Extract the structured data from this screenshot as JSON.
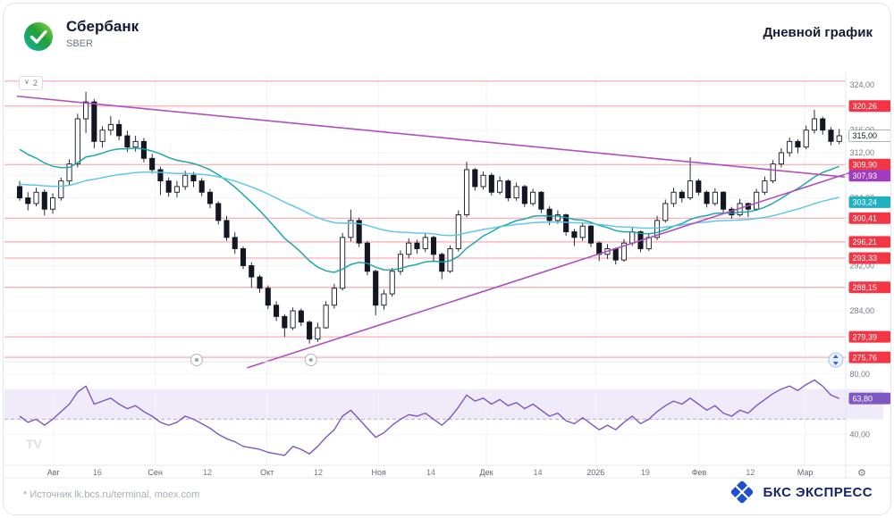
{
  "header": {
    "title": "Сбербанк",
    "ticker": "SBER",
    "right_title": "Дневной график"
  },
  "legend_chip": {
    "count": "2"
  },
  "footer": {
    "source": "*  Источник lk.bcs.ru/terminal, moex.com",
    "brand": "БКС ЭКСПРЕСС"
  },
  "chart_data": {
    "type": "candlestick",
    "title": "Сбербанк (SBER), дневной график",
    "price_axis": {
      "ylim": [
        274.2,
        325.6
      ],
      "grid_step": 4,
      "visible_grid_labels": [
        324,
        316,
        312,
        304,
        292,
        284
      ],
      "last_price": 315.0
    },
    "levels": {
      "color": "#f23645",
      "values": [
        324.68,
        320.26,
        309.9,
        300.41,
        296.21,
        293.33,
        288.15,
        279.39,
        275.76
      ],
      "labeled": [
        320.26,
        309.9,
        300.41,
        296.21,
        293.33,
        288.15,
        279.39,
        275.76
      ]
    },
    "trendlines": {
      "color": "#b04fc0",
      "current_label": 307.93,
      "label_color": "#a03cc0",
      "lines": [
        {
          "f1": 0.0,
          "p1": 322.0,
          "f2": 1.0,
          "p2": 307.7
        },
        {
          "f1": 0.278,
          "p1": 273.9,
          "f2": 1.005,
          "p2": 308.4
        }
      ]
    },
    "moving_averages": [
      {
        "period": 20,
        "init": 313.5,
        "color": "#12a3a8"
      },
      {
        "period": 60,
        "init": 306.5,
        "color": "#58c4e8",
        "current_label": 303.24,
        "label_color": "#1fb0c2"
      }
    ],
    "candles": {
      "up_color": "#ffffff",
      "down_color": "#131722",
      "border": "#131722",
      "ohlc": [
        [
          306,
          307,
          303.5,
          304
        ],
        [
          304,
          305,
          301.8,
          303
        ],
        [
          303,
          305.8,
          302.5,
          305
        ],
        [
          305,
          305.5,
          300.9,
          302
        ],
        [
          302,
          304.8,
          301.2,
          304
        ],
        [
          304,
          307.6,
          303.5,
          307
        ],
        [
          307,
          310.8,
          306.2,
          310
        ],
        [
          310,
          318.9,
          309.4,
          318
        ],
        [
          318,
          322.8,
          315.5,
          321
        ],
        [
          321,
          321.5,
          312.8,
          314
        ],
        [
          314,
          316.7,
          312.9,
          316
        ],
        [
          316,
          318.5,
          315.1,
          317
        ],
        [
          317,
          317.8,
          314.2,
          315
        ],
        [
          315,
          315.9,
          312.1,
          313
        ],
        [
          313,
          315,
          312.2,
          314
        ],
        [
          314,
          314.6,
          310.3,
          311
        ],
        [
          311,
          311.8,
          308.3,
          309
        ],
        [
          309,
          309.5,
          304.5,
          307
        ],
        [
          307,
          307.6,
          304.2,
          305
        ],
        [
          305,
          307,
          304.1,
          306
        ],
        [
          306,
          308.8,
          305.4,
          308
        ],
        [
          308,
          308.6,
          305.9,
          307
        ],
        [
          307,
          307.5,
          304.3,
          305
        ],
        [
          305,
          305.6,
          302.2,
          303
        ],
        [
          303,
          303.4,
          299.3,
          300
        ],
        [
          300,
          300.8,
          296.4,
          297
        ],
        [
          297,
          297.9,
          294.1,
          295
        ],
        [
          295,
          295.4,
          291.4,
          292
        ],
        [
          292,
          292.6,
          288.1,
          290
        ],
        [
          290,
          290.4,
          287.2,
          288
        ],
        [
          288,
          288.5,
          284.3,
          285
        ],
        [
          285,
          285.7,
          282.2,
          283
        ],
        [
          283,
          283.4,
          279.4,
          281
        ],
        [
          281,
          284.6,
          280.6,
          284
        ],
        [
          284,
          284.4,
          281.3,
          282
        ],
        [
          282,
          282.3,
          278.2,
          279
        ],
        [
          279,
          281.9,
          278.5,
          281
        ],
        [
          281,
          285.7,
          280.8,
          285
        ],
        [
          285,
          288.8,
          284.4,
          288
        ],
        [
          288,
          297.8,
          287.6,
          297
        ],
        [
          297,
          301.9,
          296.3,
          300
        ],
        [
          300,
          300.5,
          295.3,
          296
        ],
        [
          296,
          296.4,
          290.3,
          291
        ],
        [
          291,
          291.3,
          283.2,
          285
        ],
        [
          285,
          287.7,
          284.2,
          287
        ],
        [
          287,
          291.6,
          286.5,
          291
        ],
        [
          291,
          294.7,
          290.4,
          294
        ],
        [
          294,
          296.8,
          293.3,
          296
        ],
        [
          296,
          296.6,
          294.1,
          295
        ],
        [
          295,
          297.7,
          294.4,
          297
        ],
        [
          297,
          297.3,
          292.6,
          294
        ],
        [
          294,
          294.3,
          289.6,
          291
        ],
        [
          291,
          295.6,
          290.7,
          295
        ],
        [
          295,
          301.8,
          294.5,
          301
        ],
        [
          301,
          310.4,
          300.6,
          309
        ],
        [
          309,
          309.3,
          305.3,
          306
        ],
        [
          306,
          308.7,
          305.5,
          308
        ],
        [
          308,
          308.4,
          304.4,
          305
        ],
        [
          305,
          307.8,
          304.6,
          307
        ],
        [
          307,
          307.3,
          303.4,
          304
        ],
        [
          304,
          306.7,
          303.5,
          306
        ],
        [
          306,
          306.3,
          302.4,
          303
        ],
        [
          303,
          305.6,
          302.6,
          305
        ],
        [
          305,
          305.2,
          301.3,
          302
        ],
        [
          302,
          302.5,
          299.2,
          300
        ],
        [
          300,
          301.8,
          299.4,
          301
        ],
        [
          301,
          301.2,
          297.3,
          298
        ],
        [
          298,
          298.5,
          295.5,
          297
        ],
        [
          297,
          299.7,
          296.4,
          299
        ],
        [
          299,
          299.2,
          295.3,
          296
        ],
        [
          296,
          296.3,
          292.8,
          294
        ],
        [
          294,
          295.8,
          293.2,
          295
        ],
        [
          295,
          295.2,
          292.2,
          293
        ],
        [
          293,
          296.7,
          292.7,
          296
        ],
        [
          296,
          298.8,
          295.5,
          298
        ],
        [
          298,
          298.2,
          294.4,
          295
        ],
        [
          295,
          297.7,
          294.6,
          297
        ],
        [
          297,
          300.8,
          296.5,
          300
        ],
        [
          300,
          303.7,
          299.6,
          303
        ],
        [
          303,
          305.8,
          302.4,
          305
        ],
        [
          305,
          305.4,
          303.2,
          304
        ],
        [
          304,
          311.2,
          303.6,
          307
        ],
        [
          307,
          307.4,
          304.4,
          305
        ],
        [
          305,
          305.3,
          302.3,
          303
        ],
        [
          303,
          305.7,
          302.6,
          305
        ],
        [
          305,
          305.2,
          301.4,
          302
        ],
        [
          302,
          302.4,
          300.3,
          301
        ],
        [
          301,
          303.8,
          300.7,
          303
        ],
        [
          303,
          303.2,
          300.6,
          302
        ],
        [
          302,
          305.6,
          301.7,
          305
        ],
        [
          305,
          307.8,
          304.5,
          307
        ],
        [
          307,
          310.7,
          306.6,
          310
        ],
        [
          310,
          312.8,
          309.4,
          312
        ],
        [
          312,
          314.7,
          311.3,
          314
        ],
        [
          314,
          314.4,
          311.9,
          313
        ],
        [
          313,
          316.8,
          312.6,
          316
        ],
        [
          316,
          319.6,
          315.4,
          318
        ],
        [
          318,
          318.4,
          315.2,
          316
        ],
        [
          316,
          316.5,
          313.3,
          314
        ],
        [
          314,
          316.2,
          313.5,
          315
        ]
      ]
    },
    "rsi": {
      "color": "#7e57c2",
      "ylim": [
        20,
        84
      ],
      "gridlines": [
        80,
        40
      ],
      "band": [
        50,
        70
      ],
      "midline": 50,
      "last": 63.8,
      "values": [
        52,
        48,
        50,
        46,
        50,
        55,
        60,
        68,
        72,
        60,
        62,
        64,
        60,
        57,
        59,
        55,
        52,
        48,
        46,
        48,
        52,
        50,
        47,
        44,
        40,
        37,
        35,
        32,
        31,
        30,
        28,
        27,
        26,
        32,
        30,
        27,
        32,
        38,
        43,
        52,
        56,
        50,
        44,
        38,
        41,
        46,
        50,
        53,
        52,
        54,
        50,
        46,
        51,
        58,
        66,
        62,
        64,
        60,
        63,
        59,
        61,
        57,
        60,
        56,
        52,
        54,
        49,
        47,
        51,
        47,
        43,
        46,
        43,
        48,
        52,
        47,
        50,
        55,
        59,
        62,
        60,
        64,
        60,
        56,
        59,
        54,
        52,
        56,
        54,
        59,
        63,
        67,
        70,
        72,
        69,
        73,
        76,
        72,
        66,
        63.8
      ]
    },
    "x_axis": {
      "ticks": [
        {
          "label": "Авг",
          "f": 0.044,
          "m": true
        },
        {
          "label": "16",
          "f": 0.097
        },
        {
          "label": "Сен",
          "f": 0.167,
          "m": true
        },
        {
          "label": "12",
          "f": 0.23
        },
        {
          "label": "Окт",
          "f": 0.302,
          "m": true
        },
        {
          "label": "12",
          "f": 0.364
        },
        {
          "label": "Ноя",
          "f": 0.437,
          "m": true
        },
        {
          "label": "14",
          "f": 0.5
        },
        {
          "label": "Дек",
          "f": 0.567,
          "m": true
        },
        {
          "label": "14",
          "f": 0.629
        },
        {
          "label": "2026",
          "f": 0.699,
          "m": true
        },
        {
          "label": "19",
          "f": 0.759
        },
        {
          "label": "Фев",
          "f": 0.824,
          "m": true
        },
        {
          "label": "12",
          "f": 0.886
        },
        {
          "label": "Мар",
          "f": 0.952,
          "m": true
        }
      ]
    }
  },
  "markers": {
    "events": [
      {
        "f": 0.217
      },
      {
        "f": 0.355
      }
    ],
    "scroll_button_f": 0.989
  }
}
